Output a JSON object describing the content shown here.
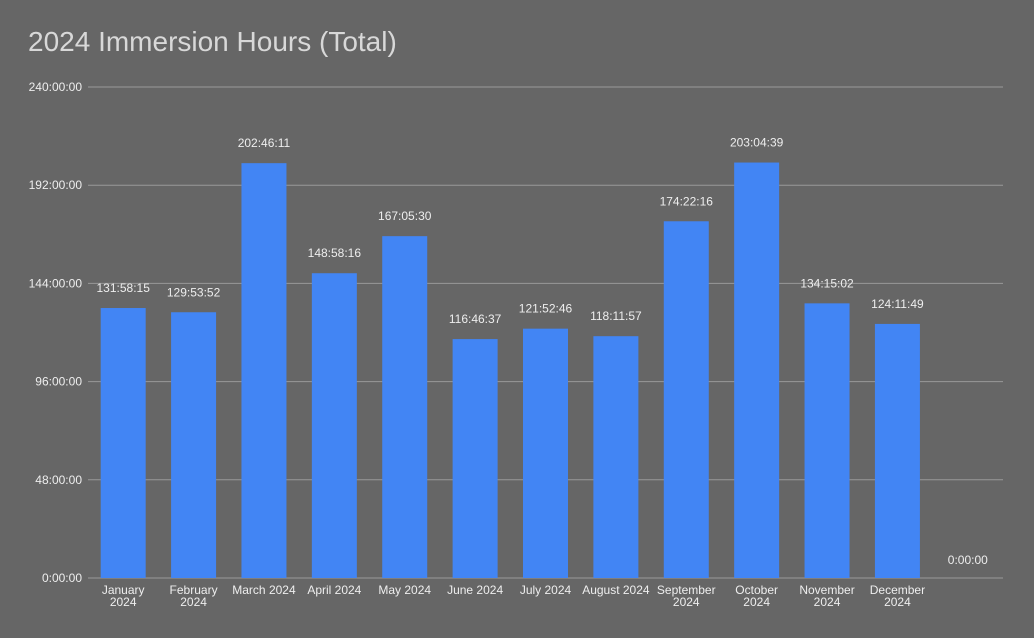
{
  "chart_data": {
    "type": "bar",
    "title": "2024 Immersion Hours (Total)",
    "xlabel": "",
    "ylabel": "",
    "categories": [
      "January 2024",
      "February 2024",
      "March 2024",
      "April 2024",
      "May 2024",
      "June 2024",
      "July 2024",
      "August 2024",
      "September 2024",
      "October 2024",
      "November 2024",
      "December 2024",
      ""
    ],
    "values_hours": [
      131.9708,
      129.8978,
      202.7697,
      148.9711,
      167.0917,
      116.7769,
      121.8794,
      118.1992,
      174.3711,
      203.0775,
      134.2506,
      124.1969,
      0
    ],
    "data_labels": [
      "131:58:15",
      "129:53:52",
      "202:46:11",
      "148:58:16",
      "167:05:30",
      "116:46:37",
      "121:52:46",
      "118:11:57",
      "174:22:16",
      "203:04:39",
      "134:15:02",
      "124:11:49",
      "0:00:00"
    ],
    "ylim": [
      0,
      240
    ],
    "yticks": [
      0,
      48,
      96,
      144,
      192,
      240
    ],
    "ytick_labels": [
      "0:00:00",
      "48:00:00",
      "96:00:00",
      "144:00:00",
      "192:00:00",
      "240:00:00"
    ],
    "grid": true,
    "legend": "none",
    "bar_color": "#4285f4",
    "background_color": "#666666",
    "gridline_color": "#999999",
    "text_color": "#eeeeee",
    "title_color": "#d8d8d8"
  }
}
